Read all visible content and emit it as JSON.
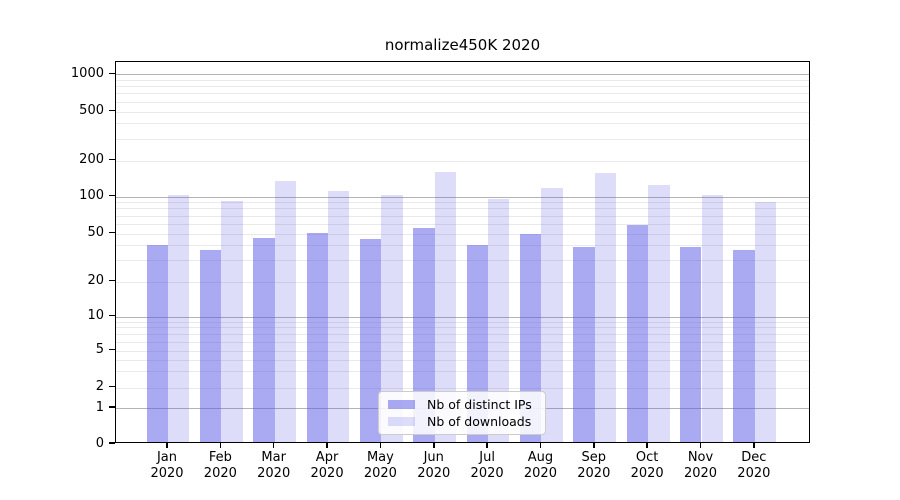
{
  "title": "normalize450K 2020",
  "chart_data": {
    "type": "bar",
    "title": "normalize450K 2020",
    "months": [
      "Jan",
      "Feb",
      "Mar",
      "Apr",
      "May",
      "Jun",
      "Jul",
      "Aug",
      "Sep",
      "Oct",
      "Nov",
      "Dec"
    ],
    "year": "2020",
    "categories": [
      "Jan 2020",
      "Feb 2020",
      "Mar 2020",
      "Apr 2020",
      "May 2020",
      "Jun 2020",
      "Jul 2020",
      "Aug 2020",
      "Sep 2020",
      "Oct 2020",
      "Nov 2020",
      "Dec 2020"
    ],
    "series": [
      {
        "name": "Nb of distinct IPs",
        "color": "rgba(85,85,230,0.5)",
        "values": [
          39,
          35,
          44,
          49,
          43,
          53,
          39,
          48,
          37,
          56,
          37,
          35
        ]
      },
      {
        "name": "Nb of downloads",
        "color": "rgba(85,85,230,0.2)",
        "values": [
          100,
          88,
          129,
          108,
          100,
          155,
          92,
          113,
          151,
          119,
          100,
          87
        ]
      }
    ],
    "y_ticks": [
      0,
      1,
      2,
      5,
      10,
      20,
      50,
      100,
      200,
      500,
      1000
    ],
    "y_scale": "log-like (log above 1, compressed linear 0-1)",
    "ylim": [
      0,
      1250
    ],
    "grid": true,
    "legend_position": "lower-center"
  },
  "legend": {
    "items": [
      {
        "label": "Nb of distinct IPs"
      },
      {
        "label": "Nb of downloads"
      }
    ]
  },
  "colors": {
    "bar_distinct_ips": "rgba(85,85,230,0.5)",
    "bar_downloads": "rgba(85,85,230,0.2)",
    "major_grid": "#b3b3b3",
    "minor_grid": "#e9e9e9",
    "spine": "#000000"
  }
}
